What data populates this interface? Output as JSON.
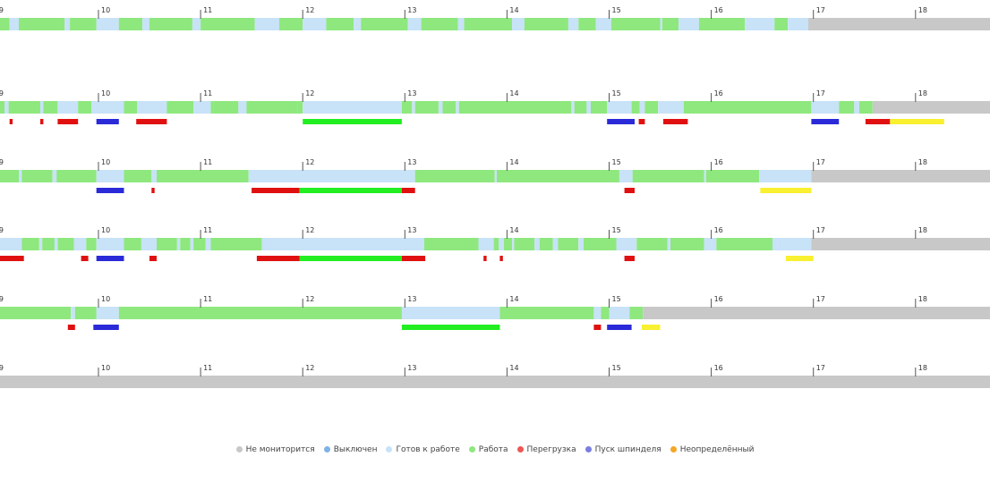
{
  "chart_data": {
    "type": "timeline",
    "x_range": [
      9,
      18.73
    ],
    "hour_ticks": [
      "9",
      "10",
      "11",
      "12",
      "13",
      "14",
      "15",
      "16",
      "17",
      "18"
    ],
    "legend": [
      {
        "key": "unmonitored",
        "label": "Не мониторится",
        "color": "#c8c8c8"
      },
      {
        "key": "off",
        "label": "Выключен",
        "color": "#7fb2e5"
      },
      {
        "key": "ready",
        "label": "Готов к работе",
        "color": "#c8e2f8"
      },
      {
        "key": "work",
        "label": "Работа",
        "color": "#8ee87e"
      },
      {
        "key": "overload",
        "label": "Перегрузка",
        "color": "#ee5555"
      },
      {
        "key": "spindle",
        "label": "Пуск шпинделя",
        "color": "#7a7ee0"
      },
      {
        "key": "undefined",
        "label": "Неопределённый",
        "color": "#f5a623"
      }
    ],
    "event_colors": {
      "red": "#e01010",
      "blue": "#2a2ad8",
      "green": "#22ee22",
      "yellow": "#f8f030"
    },
    "rows": [
      {
        "segments": [
          [
            9.0,
            9.13,
            "work"
          ],
          [
            9.13,
            9.22,
            "ready"
          ],
          [
            9.22,
            9.67,
            "work"
          ],
          [
            9.67,
            9.72,
            "ready"
          ],
          [
            9.72,
            9.98,
            "work"
          ],
          [
            9.98,
            10.2,
            "ready"
          ],
          [
            10.2,
            10.43,
            "work"
          ],
          [
            10.43,
            10.5,
            "ready"
          ],
          [
            10.5,
            10.92,
            "work"
          ],
          [
            10.92,
            11.0,
            "ready"
          ],
          [
            11.0,
            11.53,
            "work"
          ],
          [
            11.53,
            11.77,
            "ready"
          ],
          [
            11.77,
            12.0,
            "work"
          ],
          [
            12.0,
            12.23,
            "ready"
          ],
          [
            12.23,
            12.5,
            "work"
          ],
          [
            12.5,
            12.57,
            "ready"
          ],
          [
            12.57,
            13.03,
            "work"
          ],
          [
            13.03,
            13.16,
            "ready"
          ],
          [
            13.16,
            13.52,
            "work"
          ],
          [
            13.52,
            13.58,
            "ready"
          ],
          [
            13.58,
            14.05,
            "work"
          ],
          [
            14.05,
            14.17,
            "ready"
          ],
          [
            14.17,
            14.6,
            "work"
          ],
          [
            14.6,
            14.7,
            "ready"
          ],
          [
            14.7,
            14.87,
            "work"
          ],
          [
            14.87,
            15.02,
            "ready"
          ],
          [
            15.02,
            15.28,
            "work"
          ],
          [
            15.28,
            15.5,
            "work"
          ],
          [
            15.5,
            15.52,
            "ready"
          ],
          [
            15.52,
            15.68,
            "work"
          ],
          [
            15.68,
            15.88,
            "ready"
          ],
          [
            15.88,
            16.33,
            "work"
          ],
          [
            16.33,
            16.62,
            "ready"
          ],
          [
            16.62,
            16.75,
            "work"
          ],
          [
            16.75,
            16.95,
            "ready"
          ],
          [
            16.95,
            18.73,
            "unmonitored"
          ]
        ],
        "events": []
      },
      {
        "segments": [
          [
            9.0,
            9.08,
            "work"
          ],
          [
            9.08,
            9.12,
            "ready"
          ],
          [
            9.12,
            9.43,
            "work"
          ],
          [
            9.43,
            9.46,
            "ready"
          ],
          [
            9.46,
            9.6,
            "work"
          ],
          [
            9.6,
            9.8,
            "ready"
          ],
          [
            9.8,
            9.93,
            "work"
          ],
          [
            9.93,
            10.25,
            "ready"
          ],
          [
            10.25,
            10.38,
            "work"
          ],
          [
            10.38,
            10.67,
            "ready"
          ],
          [
            10.67,
            10.93,
            "work"
          ],
          [
            10.93,
            11.1,
            "ready"
          ],
          [
            11.1,
            11.13,
            "work"
          ],
          [
            11.13,
            11.37,
            "work"
          ],
          [
            11.37,
            11.45,
            "ready"
          ],
          [
            11.45,
            11.95,
            "work"
          ],
          [
            11.95,
            12.0,
            "work"
          ],
          [
            12.0,
            12.97,
            "ready"
          ],
          [
            12.97,
            13.07,
            "work"
          ],
          [
            13.07,
            13.1,
            "ready"
          ],
          [
            13.1,
            13.33,
            "work"
          ],
          [
            13.33,
            13.37,
            "ready"
          ],
          [
            13.37,
            13.5,
            "work"
          ],
          [
            13.5,
            13.53,
            "ready"
          ],
          [
            13.53,
            14.63,
            "work"
          ],
          [
            14.63,
            14.66,
            "ready"
          ],
          [
            14.66,
            14.78,
            "work"
          ],
          [
            14.78,
            14.82,
            "ready"
          ],
          [
            14.82,
            14.98,
            "work"
          ],
          [
            14.98,
            15.22,
            "ready"
          ],
          [
            15.22,
            15.3,
            "work"
          ],
          [
            15.3,
            15.35,
            "ready"
          ],
          [
            15.35,
            15.48,
            "work"
          ],
          [
            15.48,
            15.73,
            "ready"
          ],
          [
            15.73,
            16.98,
            "work"
          ],
          [
            16.98,
            17.25,
            "ready"
          ],
          [
            17.25,
            17.4,
            "work"
          ],
          [
            17.4,
            17.45,
            "ready"
          ],
          [
            17.45,
            17.58,
            "work"
          ],
          [
            17.58,
            18.73,
            "unmonitored"
          ]
        ],
        "events": [
          [
            9.13,
            9.16,
            "red"
          ],
          [
            9.43,
            9.46,
            "red"
          ],
          [
            9.6,
            9.8,
            "red"
          ],
          [
            9.98,
            10.2,
            "blue"
          ],
          [
            10.37,
            10.67,
            "red"
          ],
          [
            12.0,
            12.97,
            "green"
          ],
          [
            14.98,
            15.25,
            "blue"
          ],
          [
            15.29,
            15.35,
            "red"
          ],
          [
            15.53,
            15.77,
            "red"
          ],
          [
            16.98,
            17.25,
            "blue"
          ],
          [
            17.51,
            17.75,
            "red"
          ],
          [
            17.75,
            18.28,
            "yellow"
          ]
        ]
      },
      {
        "segments": [
          [
            9.0,
            9.03,
            "ready"
          ],
          [
            9.03,
            9.22,
            "work"
          ],
          [
            9.22,
            9.25,
            "ready"
          ],
          [
            9.25,
            9.55,
            "work"
          ],
          [
            9.55,
            9.59,
            "ready"
          ],
          [
            9.59,
            9.98,
            "work"
          ],
          [
            9.98,
            10.25,
            "ready"
          ],
          [
            10.25,
            10.52,
            "work"
          ],
          [
            10.52,
            10.57,
            "ready"
          ],
          [
            10.57,
            11.47,
            "work"
          ],
          [
            11.47,
            13.1,
            "ready"
          ],
          [
            13.1,
            13.88,
            "work"
          ],
          [
            13.88,
            13.9,
            "ready"
          ],
          [
            13.9,
            15.1,
            "work"
          ],
          [
            15.1,
            15.23,
            "ready"
          ],
          [
            15.23,
            15.93,
            "work"
          ],
          [
            15.93,
            15.95,
            "ready"
          ],
          [
            15.95,
            16.47,
            "work"
          ],
          [
            16.47,
            16.98,
            "ready"
          ],
          [
            16.98,
            18.73,
            "unmonitored"
          ]
        ],
        "events": [
          [
            9.0,
            9.03,
            "red"
          ],
          [
            9.98,
            10.25,
            "blue"
          ],
          [
            10.52,
            10.55,
            "red"
          ],
          [
            11.5,
            11.97,
            "red"
          ],
          [
            11.97,
            12.97,
            "green"
          ],
          [
            12.97,
            13.1,
            "red"
          ],
          [
            15.15,
            15.25,
            "red"
          ],
          [
            16.48,
            16.98,
            "yellow"
          ]
        ]
      },
      {
        "segments": [
          [
            9.0,
            9.25,
            "ready"
          ],
          [
            9.25,
            9.42,
            "work"
          ],
          [
            9.42,
            9.45,
            "ready"
          ],
          [
            9.45,
            9.57,
            "work"
          ],
          [
            9.57,
            9.6,
            "ready"
          ],
          [
            9.6,
            9.76,
            "work"
          ],
          [
            9.76,
            9.88,
            "ready"
          ],
          [
            9.88,
            9.98,
            "work"
          ],
          [
            9.98,
            10.25,
            "ready"
          ],
          [
            10.25,
            10.42,
            "work"
          ],
          [
            10.42,
            10.57,
            "ready"
          ],
          [
            10.57,
            10.77,
            "work"
          ],
          [
            10.77,
            10.8,
            "ready"
          ],
          [
            10.8,
            10.9,
            "work"
          ],
          [
            10.9,
            10.93,
            "ready"
          ],
          [
            10.93,
            11.05,
            "work"
          ],
          [
            11.05,
            11.1,
            "ready"
          ],
          [
            11.1,
            11.6,
            "work"
          ],
          [
            11.6,
            13.19,
            "ready"
          ],
          [
            13.19,
            13.72,
            "work"
          ],
          [
            13.72,
            13.87,
            "ready"
          ],
          [
            13.87,
            13.92,
            "work"
          ],
          [
            13.92,
            13.97,
            "ready"
          ],
          [
            13.97,
            14.05,
            "work"
          ],
          [
            14.05,
            14.07,
            "ready"
          ],
          [
            14.07,
            14.27,
            "work"
          ],
          [
            14.27,
            14.32,
            "ready"
          ],
          [
            14.32,
            14.45,
            "work"
          ],
          [
            14.45,
            14.5,
            "ready"
          ],
          [
            14.5,
            14.7,
            "work"
          ],
          [
            14.7,
            14.75,
            "ready"
          ],
          [
            14.75,
            15.07,
            "work"
          ],
          [
            15.07,
            15.27,
            "ready"
          ],
          [
            15.27,
            15.57,
            "work"
          ],
          [
            15.57,
            15.6,
            "ready"
          ],
          [
            15.6,
            15.93,
            "work"
          ],
          [
            15.93,
            16.05,
            "ready"
          ],
          [
            16.05,
            16.6,
            "work"
          ],
          [
            16.6,
            16.65,
            "ready"
          ],
          [
            16.65,
            16.67,
            "ready"
          ],
          [
            16.67,
            16.98,
            "ready"
          ],
          [
            16.98,
            18.73,
            "unmonitored"
          ]
        ],
        "events": [
          [
            9.0,
            9.27,
            "red"
          ],
          [
            9.83,
            9.9,
            "red"
          ],
          [
            9.98,
            10.25,
            "blue"
          ],
          [
            10.5,
            10.57,
            "red"
          ],
          [
            11.55,
            11.97,
            "red"
          ],
          [
            11.97,
            12.97,
            "green"
          ],
          [
            12.97,
            13.2,
            "red"
          ],
          [
            13.77,
            13.8,
            "red"
          ],
          [
            13.93,
            13.96,
            "red"
          ],
          [
            15.15,
            15.25,
            "red"
          ],
          [
            16.73,
            17.0,
            "yellow"
          ]
        ]
      },
      {
        "segments": [
          [
            9.0,
            9.73,
            "work"
          ],
          [
            9.73,
            9.77,
            "ready"
          ],
          [
            9.77,
            9.98,
            "work"
          ],
          [
            9.98,
            10.2,
            "ready"
          ],
          [
            10.2,
            12.97,
            "work"
          ],
          [
            12.97,
            13.93,
            "ready"
          ],
          [
            13.93,
            14.85,
            "work"
          ],
          [
            14.85,
            14.92,
            "ready"
          ],
          [
            14.92,
            15.0,
            "work"
          ],
          [
            15.0,
            15.2,
            "ready"
          ],
          [
            15.2,
            15.33,
            "work"
          ],
          [
            15.33,
            18.73,
            "unmonitored"
          ]
        ],
        "events": [
          [
            9.7,
            9.77,
            "red"
          ],
          [
            9.95,
            10.2,
            "blue"
          ],
          [
            12.97,
            13.93,
            "green"
          ],
          [
            14.85,
            14.92,
            "red"
          ],
          [
            14.98,
            15.22,
            "blue"
          ],
          [
            15.32,
            15.5,
            "yellow"
          ]
        ]
      },
      {
        "segments": [
          [
            9.0,
            18.73,
            "unmonitored"
          ]
        ],
        "events": []
      }
    ]
  }
}
